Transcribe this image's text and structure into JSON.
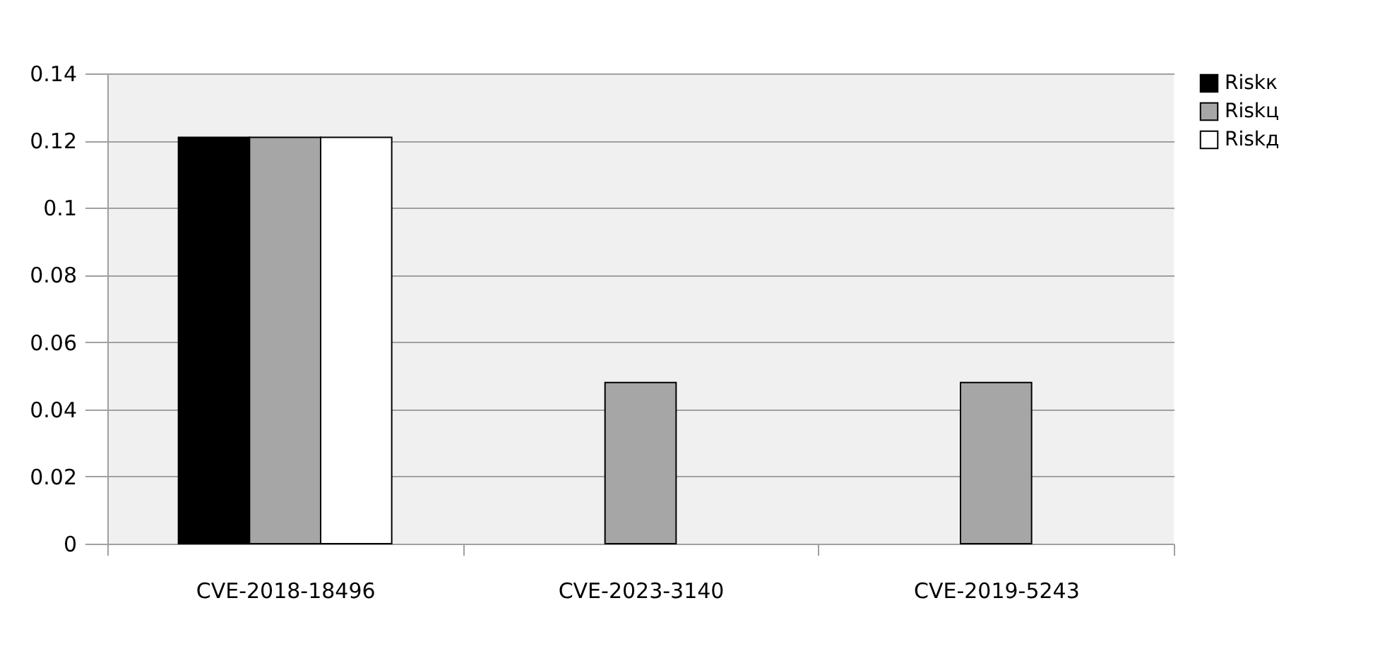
{
  "chart_data": {
    "type": "bar",
    "categories": [
      "CVE-2018-18496",
      "CVE-2023-3140",
      "CVE-2019-5243"
    ],
    "series": [
      {
        "name": "Riskк",
        "color": "#000000",
        "values": [
          0.121,
          null,
          null
        ]
      },
      {
        "name": "Riskц",
        "color": "#a6a6a6",
        "values": [
          0.121,
          0.048,
          0.048
        ]
      },
      {
        "name": "Riskд",
        "color": "#ffffff",
        "values": [
          0.121,
          null,
          null
        ]
      }
    ],
    "ylim": [
      0,
      0.14
    ],
    "yticks": [
      0,
      0.02,
      0.04,
      0.06,
      0.08,
      0.1,
      0.12,
      0.14
    ],
    "grid": "y",
    "legend": "right"
  }
}
